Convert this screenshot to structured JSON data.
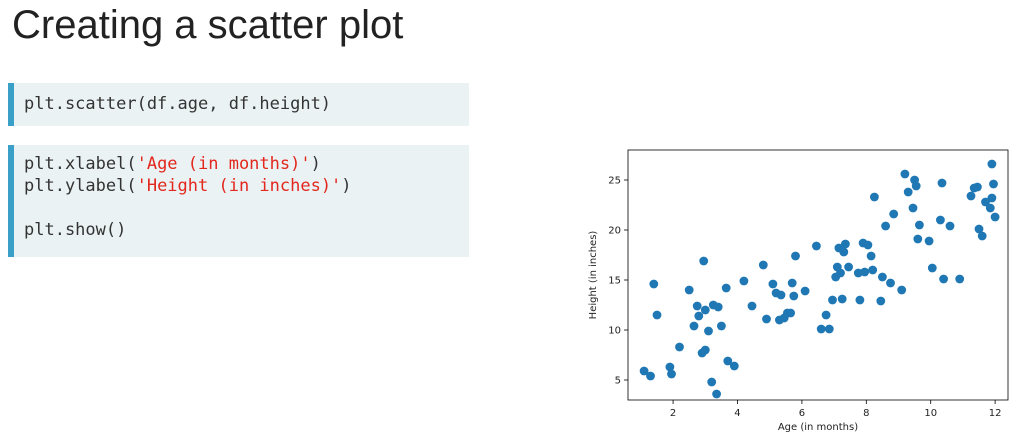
{
  "slide": {
    "title": "Creating a scatter plot"
  },
  "code_block_1": {
    "line_1": "plt.scatter(df.age, df.height)"
  },
  "code_block_2": {
    "line_1_prefix": "plt.xlabel(",
    "line_1_string": "'Age (in months)'",
    "line_1_suffix": ")",
    "line_2_prefix": "plt.ylabel(",
    "line_2_string": "'Height (in inches)'",
    "line_2_suffix": ")",
    "line_4": "plt.show()"
  },
  "colors": {
    "code_background": "#eaf2f4",
    "code_accent_bar": "#3aa0c8",
    "code_string": "#e3271c",
    "marker": "#1f77b4"
  },
  "chart_data": {
    "type": "scatter",
    "title": "",
    "xlabel": "Age (in months)",
    "ylabel": "Height (in inches)",
    "xlim": [
      0.6,
      12.4
    ],
    "ylim": [
      3,
      28
    ],
    "xticks": [
      2,
      4,
      6,
      8,
      10,
      12
    ],
    "yticks": [
      5,
      10,
      15,
      20,
      25
    ],
    "grid": false,
    "marker_color": "#1f77b4",
    "x": [
      1.1,
      1.3,
      1.4,
      1.5,
      1.9,
      1.95,
      2.2,
      2.5,
      2.65,
      2.75,
      2.8,
      2.9,
      2.95,
      3.0,
      3.0,
      3.1,
      3.2,
      3.25,
      3.35,
      3.4,
      3.5,
      3.65,
      3.7,
      3.9,
      4.2,
      4.45,
      4.8,
      4.9,
      5.1,
      5.2,
      5.3,
      5.35,
      5.45,
      5.55,
      5.65,
      5.7,
      5.75,
      5.8,
      6.1,
      6.45,
      6.6,
      6.75,
      6.85,
      6.95,
      7.05,
      7.1,
      7.15,
      7.2,
      7.25,
      7.3,
      7.35,
      7.45,
      7.75,
      7.8,
      7.9,
      7.95,
      8.05,
      8.15,
      8.2,
      8.25,
      8.45,
      8.5,
      8.6,
      8.75,
      8.85,
      9.1,
      9.2,
      9.3,
      9.45,
      9.5,
      9.55,
      9.6,
      9.65,
      9.95,
      10.05,
      10.3,
      10.35,
      10.4,
      10.6,
      10.9,
      11.25,
      11.35,
      11.45,
      11.5,
      11.6,
      11.7,
      11.85,
      11.9,
      11.9,
      11.95,
      12.0
    ],
    "y": [
      5.9,
      5.4,
      14.6,
      11.5,
      6.3,
      5.6,
      8.3,
      14.0,
      10.4,
      12.4,
      11.4,
      7.7,
      16.9,
      8.0,
      12.0,
      9.9,
      4.8,
      12.5,
      3.6,
      12.3,
      10.4,
      14.2,
      6.9,
      6.4,
      14.9,
      12.4,
      16.5,
      11.1,
      14.6,
      13.7,
      11.0,
      13.5,
      11.2,
      11.7,
      11.7,
      14.7,
      13.4,
      17.4,
      13.9,
      18.4,
      10.1,
      11.5,
      10.1,
      13.0,
      15.3,
      16.3,
      18.2,
      15.7,
      13.1,
      17.8,
      18.6,
      16.3,
      15.7,
      13.0,
      18.7,
      15.8,
      18.5,
      17.4,
      16.0,
      23.3,
      12.9,
      15.3,
      20.4,
      14.7,
      21.6,
      14.0,
      25.6,
      23.8,
      22.2,
      25.0,
      24.4,
      19.1,
      20.5,
      18.9,
      16.2,
      21.0,
      24.7,
      15.1,
      20.4,
      15.1,
      23.4,
      24.2,
      24.3,
      20.1,
      19.4,
      22.8,
      22.2,
      26.6,
      23.2,
      24.6,
      21.3
    ]
  }
}
